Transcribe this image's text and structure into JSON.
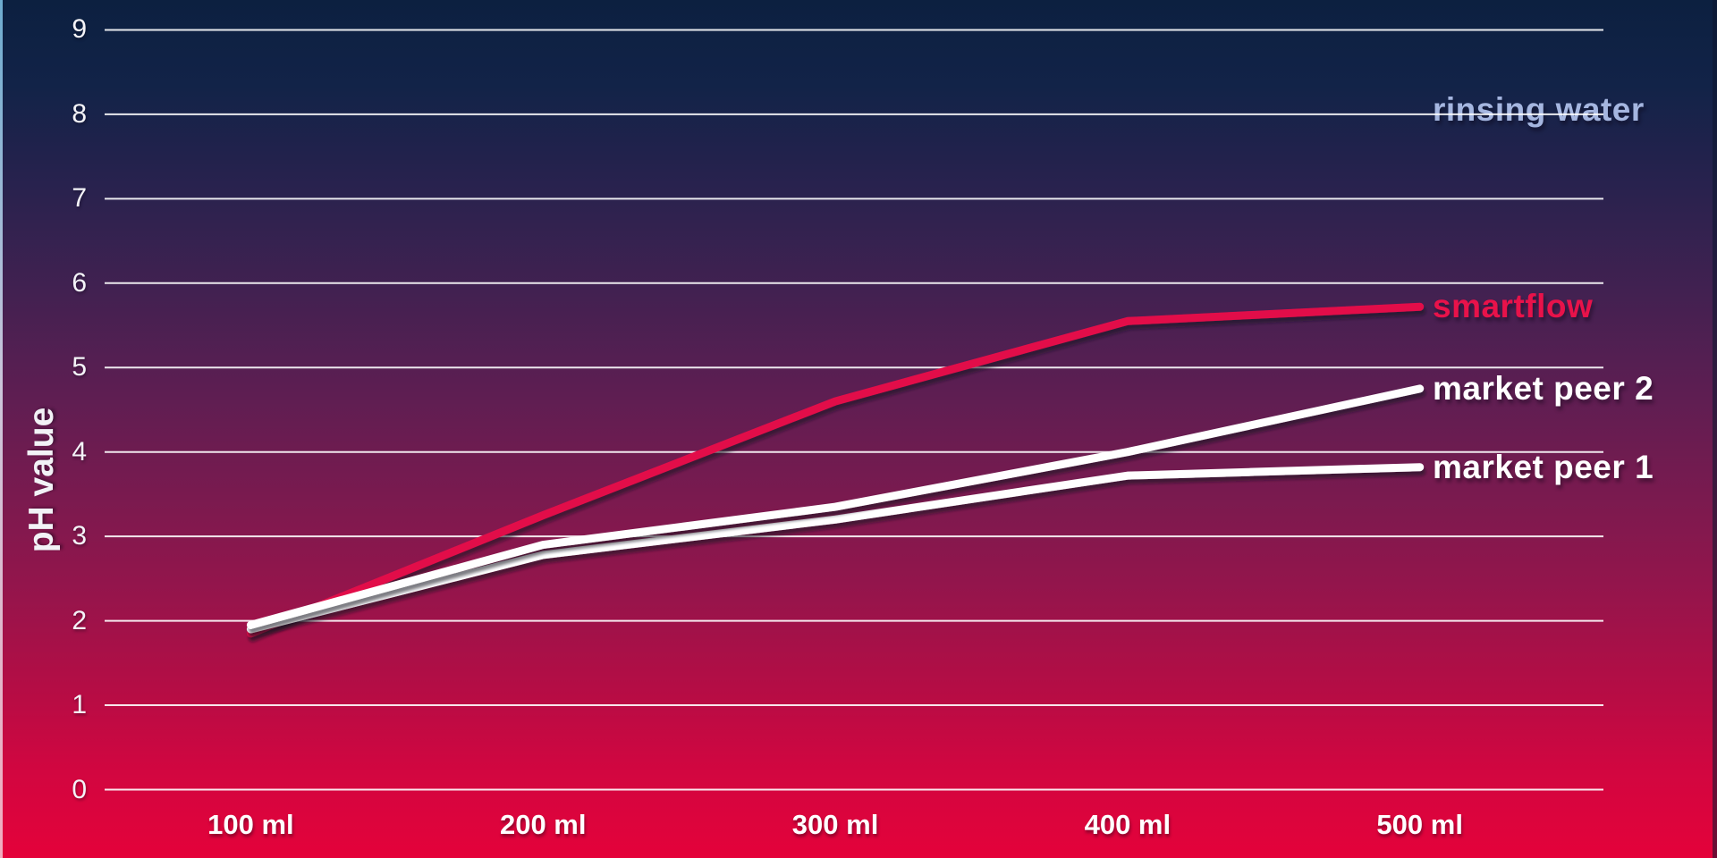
{
  "slide": {
    "background_top_color": "#0C2040",
    "background_bottom_color": "#E4023A"
  },
  "chart_data": {
    "type": "line",
    "title": "",
    "xlabel": "",
    "ylabel": "pH value",
    "categories": [
      "100 ml",
      "200 ml",
      "300 ml",
      "400 ml",
      "500 ml"
    ],
    "yticks": [
      0,
      1,
      2,
      3,
      4,
      5,
      6,
      7,
      8,
      9
    ],
    "ylim": [
      0,
      9
    ],
    "grid": true,
    "gridline_color": "#ffffff",
    "legend_position": "right-of-line-ends",
    "series": [
      {
        "name": "rinsing water",
        "line_color": "#9FB2DC",
        "label_color": "#A5B6E0",
        "values": [
          8.05,
          8.05,
          8.05,
          8.05,
          8.05
        ]
      },
      {
        "name": "smartflow",
        "line_color": "#E2104A",
        "label_color": "#E8124A",
        "values": [
          1.85,
          3.25,
          4.6,
          5.55,
          5.72
        ]
      },
      {
        "name": "market peer 1",
        "line_color": "#FFFFFF",
        "label_color": "#FFFFFF",
        "values": [
          1.9,
          2.78,
          3.2,
          3.72,
          3.82
        ]
      },
      {
        "name": "market peer 2",
        "line_color": "#FFFFFF",
        "label_color": "#FFFFFF",
        "values": [
          1.95,
          2.9,
          3.35,
          4.0,
          4.75
        ]
      }
    ]
  }
}
